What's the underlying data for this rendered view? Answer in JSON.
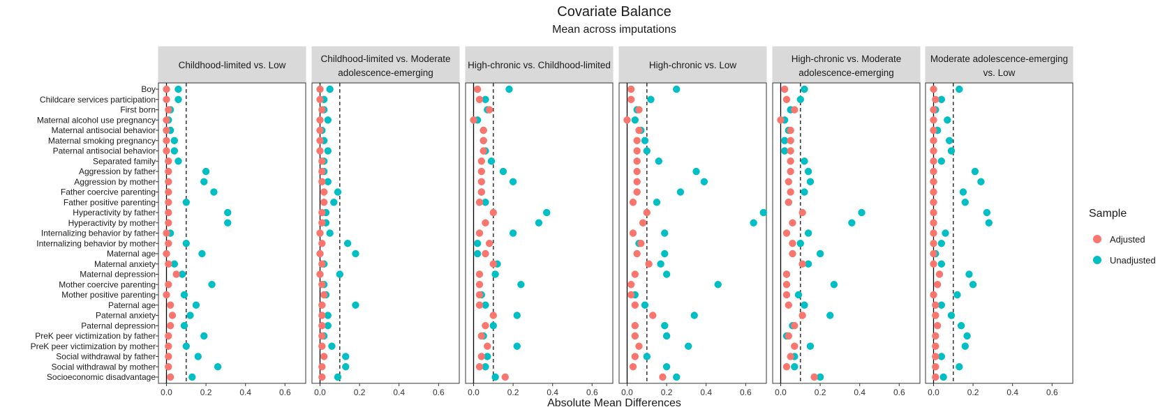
{
  "chart_data": {
    "type": "scatter",
    "title": "Covariate Balance",
    "subtitle": "Mean across imputations",
    "xlabel": "Absolute Mean Differences",
    "xlim": [
      0,
      0.7
    ],
    "xticks": [
      "0.0",
      "0.2",
      "0.4",
      "0.6"
    ],
    "threshold": 0.1,
    "legend": {
      "title": "Sample",
      "position": "right",
      "entries": [
        {
          "label": "Adjusted",
          "color": "#F8766D"
        },
        {
          "label": "Unadjusted",
          "color": "#00BFC4"
        }
      ]
    },
    "covariates": [
      "Boy",
      "Childcare services participation",
      "First born",
      "Maternal alcohol use pregnancy",
      "Maternal antisocial behavior",
      "Maternal smoking pregnancy",
      "Paternal antisocial behavior",
      "Separated family",
      "Aggression by father",
      "Aggression by mother",
      "Father coercive parenting",
      "Father positive parenting",
      "Hyperactivity by father",
      "Hyperactivity by mother",
      "Internalizing behavior by father",
      "Internalizing behavior by mother",
      "Maternal age",
      "Maternal anxiety",
      "Maternal depression",
      "Mother coercive parenting",
      "Mother positive parenting",
      "Paternal age",
      "Paternal anxiety",
      "Paternal depression",
      "PreK peer victimization by father",
      "PreK peer victimization by mother",
      "Social withdrawal by father",
      "Social withdrawal by mother",
      "Socioeconomic disadvantage"
    ],
    "panels": [
      {
        "title_lines": [
          "Childhood-limited vs. Low"
        ],
        "adjusted": [
          0.0,
          0.0,
          0.01,
          0.0,
          0.0,
          0.0,
          0.0,
          0.01,
          0.01,
          0.01,
          0.01,
          0.01,
          0.01,
          0.01,
          0.0,
          0.01,
          0.0,
          0.01,
          0.05,
          0.01,
          0.0,
          0.02,
          0.03,
          0.02,
          0.01,
          0.01,
          0.01,
          0.01,
          0.02
        ],
        "unadjusted": [
          0.06,
          0.06,
          0.02,
          0.01,
          0.02,
          0.04,
          0.04,
          0.06,
          0.2,
          0.19,
          0.24,
          0.1,
          0.31,
          0.31,
          0.02,
          0.1,
          0.18,
          0.04,
          0.08,
          0.23,
          0.09,
          0.15,
          0.12,
          0.09,
          0.19,
          0.1,
          0.16,
          0.26,
          0.13
        ]
      },
      {
        "title_lines": [
          "Childhood-limited vs. Moderate",
          "adolescence-emerging"
        ],
        "adjusted": [
          0.0,
          0.0,
          0.01,
          0.0,
          0.0,
          0.0,
          0.0,
          0.01,
          0.01,
          0.01,
          0.02,
          0.02,
          0.01,
          0.01,
          0.0,
          0.01,
          0.0,
          0.01,
          0.0,
          0.01,
          0.02,
          0.01,
          0.01,
          0.01,
          0.01,
          0.01,
          0.02,
          0.01,
          0.01
        ],
        "unadjusted": [
          0.05,
          0.02,
          0.02,
          0.04,
          0.01,
          0.02,
          0.04,
          0.02,
          0.02,
          0.04,
          0.09,
          0.07,
          0.03,
          0.03,
          0.05,
          0.14,
          0.18,
          0.02,
          0.1,
          0.02,
          0.03,
          0.18,
          0.04,
          0.04,
          0.02,
          0.06,
          0.13,
          0.13,
          0.09
        ]
      },
      {
        "title_lines": [
          "High-chronic vs. Childhood-limited"
        ],
        "adjusted": [
          0.02,
          0.03,
          0.08,
          0.0,
          0.05,
          0.05,
          0.05,
          0.04,
          0.04,
          0.04,
          0.04,
          0.03,
          0.1,
          0.06,
          0.03,
          0.08,
          0.06,
          0.1,
          0.03,
          0.03,
          0.03,
          0.03,
          0.1,
          0.06,
          0.04,
          0.07,
          0.04,
          0.03,
          0.16
        ],
        "unadjusted": [
          0.18,
          0.06,
          0.07,
          0.02,
          0.05,
          0.05,
          0.06,
          0.09,
          0.15,
          0.2,
          0.04,
          0.06,
          0.37,
          0.33,
          0.2,
          0.02,
          0.02,
          0.12,
          0.11,
          0.24,
          0.04,
          0.06,
          0.22,
          0.1,
          0.05,
          0.22,
          0.07,
          0.06,
          0.11
        ]
      },
      {
        "title_lines": [
          "High-chronic vs. Low"
        ],
        "adjusted": [
          0.02,
          0.02,
          0.06,
          0.0,
          0.06,
          0.05,
          0.05,
          0.05,
          0.05,
          0.05,
          0.05,
          0.03,
          0.1,
          0.08,
          0.03,
          0.07,
          0.05,
          0.11,
          0.04,
          0.02,
          0.02,
          0.04,
          0.13,
          0.04,
          0.04,
          0.06,
          0.04,
          0.03,
          0.18
        ],
        "unadjusted": [
          0.25,
          0.12,
          0.05,
          0.04,
          0.07,
          0.09,
          0.1,
          0.16,
          0.35,
          0.39,
          0.27,
          0.15,
          0.69,
          0.64,
          0.19,
          0.06,
          0.19,
          0.17,
          0.2,
          0.46,
          0.04,
          0.09,
          0.34,
          0.19,
          0.2,
          0.31,
          0.1,
          0.2,
          0.25
        ]
      },
      {
        "title_lines": [
          "High-chronic vs. Moderate",
          "adolescence-emerging"
        ],
        "adjusted": [
          0.02,
          0.03,
          0.07,
          0.0,
          0.05,
          0.05,
          0.05,
          0.05,
          0.05,
          0.04,
          0.05,
          0.04,
          0.11,
          0.06,
          0.03,
          0.06,
          0.06,
          0.11,
          0.03,
          0.03,
          0.03,
          0.04,
          0.11,
          0.07,
          0.04,
          0.07,
          0.05,
          0.03,
          0.17
        ],
        "unadjusted": [
          0.12,
          0.1,
          0.05,
          0.02,
          0.04,
          0.02,
          0.02,
          0.12,
          0.14,
          0.15,
          0.12,
          0.04,
          0.41,
          0.36,
          0.14,
          0.1,
          0.2,
          0.14,
          0.03,
          0.27,
          0.09,
          0.12,
          0.25,
          0.06,
          0.03,
          0.15,
          0.07,
          0.07,
          0.2
        ]
      },
      {
        "title_lines": [
          "Moderate adolescence-emerging",
          "vs. Low"
        ],
        "adjusted": [
          0.0,
          0.01,
          0.0,
          0.0,
          0.0,
          0.0,
          0.0,
          0.0,
          0.0,
          0.0,
          0.0,
          0.0,
          0.0,
          0.0,
          0.0,
          0.0,
          0.0,
          0.0,
          0.03,
          0.02,
          0.0,
          0.01,
          0.01,
          0.02,
          0.01,
          0.01,
          0.01,
          0.01,
          0.01
        ],
        "unadjusted": [
          0.13,
          0.04,
          0.01,
          0.07,
          0.02,
          0.08,
          0.09,
          0.04,
          0.21,
          0.24,
          0.15,
          0.16,
          0.27,
          0.28,
          0.06,
          0.04,
          0.01,
          0.04,
          0.18,
          0.2,
          0.12,
          0.04,
          0.09,
          0.14,
          0.17,
          0.16,
          0.04,
          0.13,
          0.05
        ]
      }
    ]
  }
}
